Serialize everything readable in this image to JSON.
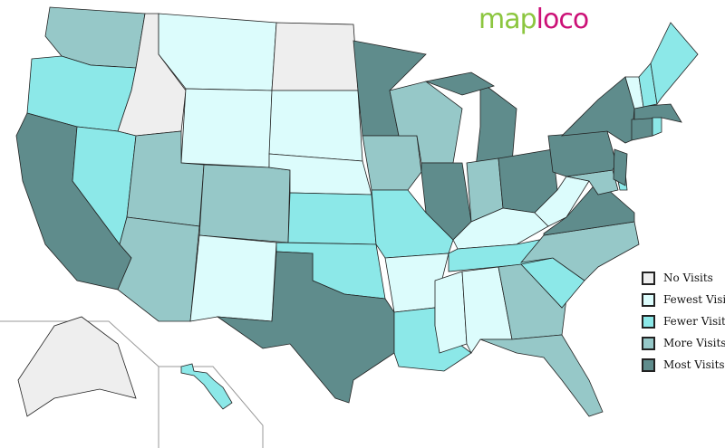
{
  "logo": {
    "part1": "map",
    "part2": "loco"
  },
  "legend": [
    {
      "key": "none",
      "label": "No Visits",
      "color": "#eeeeee"
    },
    {
      "key": "fewest",
      "label": "Fewest Visits",
      "color": "#dcfcfc"
    },
    {
      "key": "fewer",
      "label": "Fewer Visits",
      "color": "#8ce8e8"
    },
    {
      "key": "more",
      "label": "More Visits",
      "color": "#96c8c8"
    },
    {
      "key": "most",
      "label": "Most Visits",
      "color": "#5f8c8c"
    }
  ],
  "states": {
    "WA": "more",
    "OR": "fewer",
    "CA": "most",
    "ID": "none",
    "NV": "fewer",
    "MT": "fewest",
    "WY": "fewest",
    "UT": "more",
    "AZ": "more",
    "CO": "more",
    "NM": "fewest",
    "ND": "none",
    "SD": "fewest",
    "NE": "fewest",
    "KS": "fewer",
    "OK": "fewer",
    "TX": "most",
    "MN": "most",
    "IA": "more",
    "MO": "fewer",
    "AR": "fewest",
    "LA": "fewer",
    "WI": "more",
    "IL": "most",
    "MI": "most",
    "MIU": "most",
    "IN": "more",
    "OH": "most",
    "KY": "fewest",
    "TN": "fewer",
    "MS": "fewest",
    "AL": "fewest",
    "GA": "more",
    "FL": "more",
    "SC": "fewer",
    "NC": "more",
    "VA": "most",
    "WV": "fewest",
    "MD": "more",
    "DE": "fewer",
    "NJ": "most",
    "PA": "most",
    "NY": "most",
    "CT": "most",
    "RI": "fewer",
    "MA": "most",
    "VT": "fewest",
    "NH": "fewer",
    "ME": "fewer",
    "AK": "none",
    "HI": "fewer"
  }
}
